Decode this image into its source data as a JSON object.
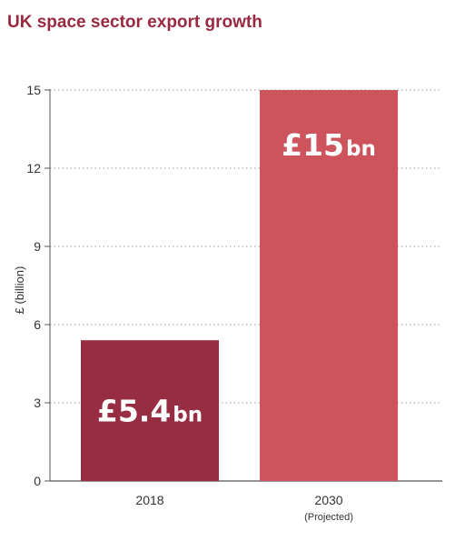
{
  "chart_data": {
    "type": "bar",
    "title": "UK space sector export growth",
    "ylabel": "£ (billion)",
    "xlabel": "",
    "ylim": [
      0,
      15
    ],
    "yticks": [
      0,
      3,
      6,
      9,
      12,
      15
    ],
    "grid": true,
    "categories": [
      "2018",
      "2030"
    ],
    "category_sublabels": [
      "",
      "(Projected)"
    ],
    "values": [
      5.4,
      15
    ],
    "bar_labels": [
      {
        "amount": "£5.4",
        "unit": "bn"
      },
      {
        "amount": "£15",
        "unit": "bn"
      }
    ],
    "colors": [
      "#962d43",
      "#cd545d"
    ]
  }
}
